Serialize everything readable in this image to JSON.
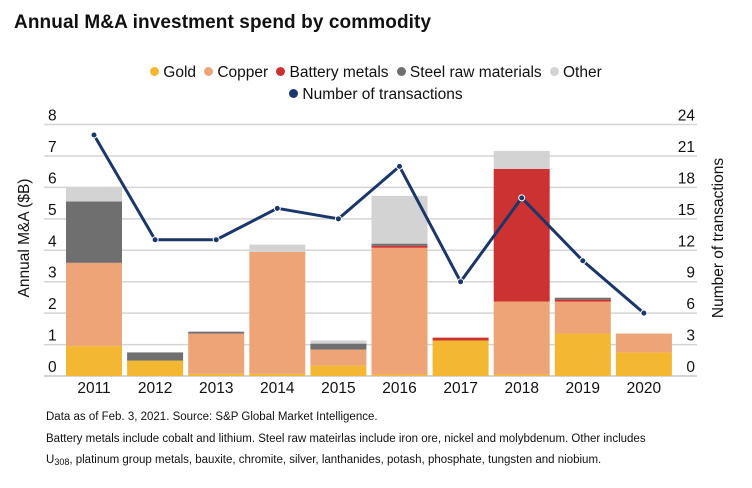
{
  "chart_data": {
    "type": "bar",
    "stacked": true,
    "title": "Annual M&A investment spend by commodity",
    "xlabel": "",
    "ylabel": "Annual M&A  ($B)",
    "y2label": "Number of transactions",
    "categories": [
      "2011",
      "2012",
      "2013",
      "2014",
      "2015",
      "2016",
      "2017",
      "2018",
      "2019",
      "2020"
    ],
    "ylim": [
      0,
      8
    ],
    "yticks": [
      "0",
      "1",
      "2",
      "3",
      "4",
      "5",
      "6",
      "7",
      "8"
    ],
    "y2lim": [
      0,
      24
    ],
    "y2ticks": [
      "0",
      "3",
      "6",
      "9",
      "12",
      "15",
      "18",
      "21",
      "24"
    ],
    "grid": true,
    "legend_position": "top-center",
    "series": [
      {
        "name": "Gold",
        "color": "#F4B731",
        "values": [
          0.95,
          0.49,
          0.07,
          0.07,
          0.33,
          0.05,
          1.13,
          0.05,
          1.35,
          0.75
        ]
      },
      {
        "name": "Copper",
        "color": "#EDA477",
        "values": [
          2.65,
          0.0,
          1.28,
          3.88,
          0.51,
          4.03,
          0.0,
          2.32,
          1.02,
          0.6
        ]
      },
      {
        "name": "Battery metals",
        "color": "#CC3232",
        "values": [
          0.0,
          0.0,
          0.0,
          0.0,
          0.0,
          0.06,
          0.09,
          4.22,
          0.06,
          0.0
        ]
      },
      {
        "name": "Steel raw materials",
        "color": "#6F6F6F",
        "values": [
          1.95,
          0.26,
          0.06,
          0.0,
          0.19,
          0.07,
          0.0,
          0.0,
          0.06,
          0.0
        ]
      },
      {
        "name": "Other",
        "color": "#D3D3D3",
        "values": [
          0.45,
          0.0,
          0.0,
          0.23,
          0.1,
          1.52,
          0.0,
          0.57,
          0.0,
          0.0
        ]
      }
    ],
    "line_series": {
      "name": "Number of transactions",
      "color": "#1B3668",
      "axis": "right",
      "values": [
        23,
        13,
        13,
        16,
        15,
        20,
        9,
        17,
        11,
        6
      ]
    }
  },
  "legend": {
    "row1": [
      {
        "label": "Gold",
        "color": "#F4B731"
      },
      {
        "label": "Copper",
        "color": "#EDA477"
      },
      {
        "label": "Battery metals",
        "color": "#CC3232"
      },
      {
        "label": "Steel raw materials",
        "color": "#6F6F6F"
      },
      {
        "label": "Other",
        "color": "#D3D3D3"
      }
    ],
    "row2": [
      {
        "label": "Number of transactions",
        "color": "#1B3668"
      }
    ]
  },
  "footnotes": {
    "line1": "Data as of Feb. 3, 2021. Source: S&P Global Market Intelligence.",
    "line2": "Battery metals include cobalt and lithium. Steel raw mateirlas include iron ore, nickel and molybdenum. Other includes",
    "line3_prefix": "U",
    "line3_sub": "308",
    "line3_rest": ", platinum group metals, bauxite, chromite, silver, lanthanides, potash, phosphate, tungsten and niobium."
  }
}
